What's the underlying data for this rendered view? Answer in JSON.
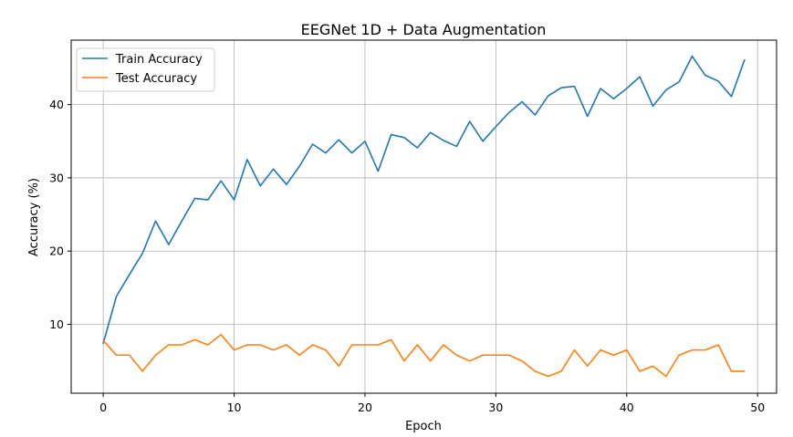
{
  "chart_data": {
    "type": "line",
    "title": "EEGNet 1D + Data Augmentation",
    "xlabel": "Epoch",
    "ylabel": "Accuracy (%)",
    "xlim": [
      -2.45,
      51.45
    ],
    "ylim": [
      0.6,
      48.8
    ],
    "x_ticks": [
      0,
      10,
      20,
      30,
      40,
      50
    ],
    "y_ticks": [
      10,
      20,
      30,
      40
    ],
    "grid": true,
    "legend_position": "top-left",
    "x": [
      0,
      1,
      2,
      3,
      4,
      5,
      6,
      7,
      8,
      9,
      10,
      11,
      12,
      13,
      14,
      15,
      16,
      17,
      18,
      19,
      20,
      21,
      22,
      23,
      24,
      25,
      26,
      27,
      28,
      29,
      30,
      31,
      32,
      33,
      34,
      35,
      36,
      37,
      38,
      39,
      40,
      41,
      42,
      43,
      44,
      45,
      46,
      47,
      48,
      49
    ],
    "series": [
      {
        "name": "Train Accuracy",
        "color": "#1f77b4",
        "values": [
          7.4,
          13.8,
          16.8,
          19.7,
          24.1,
          20.9,
          24.1,
          27.2,
          27.0,
          29.6,
          27.0,
          32.5,
          28.9,
          31.2,
          29.1,
          31.6,
          34.6,
          33.4,
          35.2,
          33.4,
          35.0,
          30.9,
          35.9,
          35.5,
          34.1,
          36.2,
          35.1,
          34.3,
          37.7,
          35.0,
          37.0,
          38.9,
          40.4,
          38.6,
          41.2,
          42.3,
          42.5,
          38.4,
          42.2,
          40.8,
          42.2,
          43.8,
          39.8,
          42.0,
          43.1,
          46.6,
          44.0,
          43.2,
          41.1,
          46.1
        ]
      },
      {
        "name": "Test Accuracy",
        "color": "#ff7f0e",
        "values": [
          7.8,
          5.8,
          5.8,
          3.6,
          5.8,
          7.2,
          7.2,
          7.9,
          7.2,
          8.6,
          6.5,
          7.2,
          7.2,
          6.5,
          7.2,
          5.8,
          7.2,
          6.5,
          4.3,
          7.2,
          7.2,
          7.2,
          7.9,
          5.0,
          7.2,
          5.0,
          7.2,
          5.8,
          5.0,
          5.8,
          5.8,
          5.8,
          5.0,
          3.6,
          2.9,
          3.6,
          6.5,
          4.3,
          6.5,
          5.8,
          6.5,
          3.6,
          4.3,
          2.9,
          5.8,
          6.5,
          6.5,
          7.2,
          3.6,
          3.6
        ]
      }
    ]
  }
}
